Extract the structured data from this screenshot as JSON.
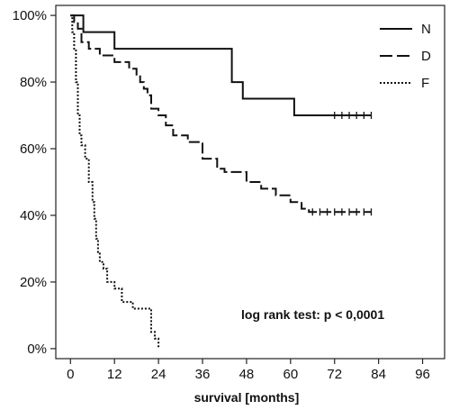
{
  "chart_data": {
    "type": "line",
    "xlabel": "survival  [months]",
    "ylabel": "",
    "xlim": [
      -4,
      102
    ],
    "ylim": [
      -3,
      103
    ],
    "xticks": [
      0,
      12,
      24,
      36,
      48,
      60,
      72,
      84,
      96
    ],
    "yticks": [
      0,
      20,
      40,
      60,
      80,
      100
    ],
    "yticklabels": [
      "0%",
      "20%",
      "40%",
      "60%",
      "80%",
      "100%"
    ],
    "annotation": "log rank test:  p < 0,0001",
    "legend_position": "top-right",
    "series": [
      {
        "name": "N",
        "style": "solid",
        "x": [
          0,
          3.5,
          3.5,
          7,
          7,
          12,
          12,
          44,
          44,
          45,
          45,
          47,
          47,
          61,
          61,
          82
        ],
        "y": [
          100,
          100,
          95,
          95,
          95,
          95,
          90,
          90,
          80,
          80,
          80,
          80,
          75,
          75,
          70,
          70
        ],
        "censored_x": [
          72,
          74,
          76,
          78,
          80,
          82
        ],
        "censored_y": 70
      },
      {
        "name": "D",
        "style": "dashed",
        "x": [
          0,
          1,
          1,
          2,
          2,
          3,
          3,
          5,
          5,
          8,
          8,
          12,
          12,
          16,
          16,
          18,
          18,
          19,
          19,
          20,
          20,
          21,
          21,
          22,
          22,
          24,
          24,
          26,
          26,
          28,
          28,
          32,
          32,
          36,
          36,
          40,
          40,
          42,
          42,
          48,
          48,
          52,
          52,
          56,
          56,
          60,
          60,
          63,
          63,
          65,
          65,
          82
        ],
        "y": [
          100,
          100,
          98,
          98,
          96,
          96,
          92,
          92,
          90,
          90,
          88,
          88,
          86,
          86,
          84,
          84,
          82,
          82,
          80,
          80,
          78,
          78,
          76,
          76,
          72,
          72,
          70,
          70,
          67,
          67,
          64,
          64,
          62,
          62,
          57,
          57,
          54,
          54,
          53,
          53,
          50,
          50,
          48,
          48,
          46,
          46,
          44,
          44,
          42,
          42,
          41,
          41
        ],
        "censored_x": [
          66,
          68,
          70,
          72,
          74,
          76,
          78,
          80,
          82
        ],
        "censored_y": 41
      },
      {
        "name": "F",
        "style": "dotted",
        "x": [
          0,
          0.5,
          0.5,
          1,
          1,
          1.5,
          1.5,
          2,
          2,
          2.5,
          2.5,
          3,
          3,
          4,
          4,
          5,
          5,
          6,
          6,
          6.5,
          6.5,
          7,
          7,
          7.5,
          7.5,
          8,
          8,
          9,
          9,
          10,
          10,
          12,
          12,
          14,
          14,
          17,
          17,
          22,
          22,
          23,
          23,
          24,
          24
        ],
        "y": [
          100,
          100,
          95,
          95,
          90,
          90,
          80,
          80,
          70,
          70,
          64,
          64,
          61,
          61,
          57,
          57,
          50,
          50,
          44,
          44,
          39,
          39,
          33,
          33,
          29,
          29,
          26,
          26,
          24,
          24,
          20,
          20,
          18,
          18,
          14,
          14,
          12,
          12,
          5,
          5,
          3,
          3,
          0
        ]
      }
    ]
  }
}
